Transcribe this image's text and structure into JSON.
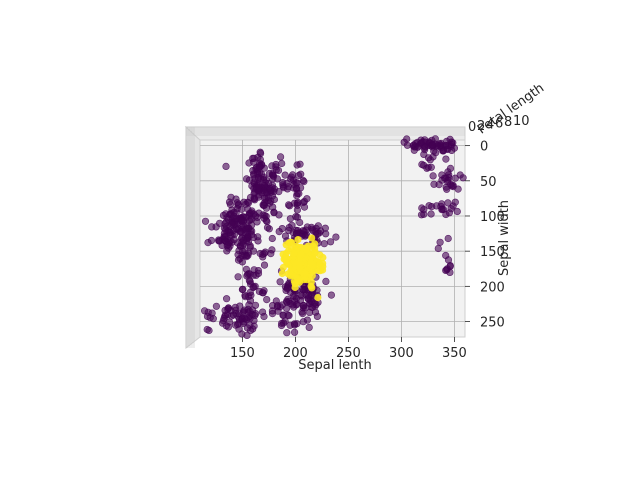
{
  "chart_data": {
    "type": "scatter",
    "projection": "3d",
    "xlabel": "Sepal lenth",
    "ylabel": "Sepal width",
    "zlabel": "Petal length",
    "xlim": [
      110,
      360
    ],
    "ylim": [
      -8,
      272
    ],
    "xticks": [
      150,
      200,
      250,
      300,
      350
    ],
    "yticks": [
      0,
      50,
      100,
      150,
      200,
      250
    ],
    "grid": true,
    "colors": {
      "cluster_0": "#440154",
      "cluster_1": "#fde725",
      "pane": "#f2f2f2",
      "grid": "#b0b0b0"
    },
    "clusters": [
      {
        "label": 0,
        "color": "#440154",
        "alpha": 0.6,
        "blobs": [
          {
            "x": 165,
            "y": 40,
            "sx": 6,
            "sy": 18,
            "n": 40
          },
          {
            "x": 185,
            "y": 40,
            "sx": 5,
            "sy": 15,
            "n": 20
          },
          {
            "x": 200,
            "y": 70,
            "sx": 6,
            "sy": 25,
            "n": 40
          },
          {
            "x": 150,
            "y": 105,
            "sx": 10,
            "sy": 18,
            "n": 80
          },
          {
            "x": 170,
            "y": 70,
            "sx": 6,
            "sy": 20,
            "n": 60
          },
          {
            "x": 135,
            "y": 120,
            "sx": 8,
            "sy": 15,
            "n": 30
          },
          {
            "x": 148,
            "y": 135,
            "sx": 8,
            "sy": 15,
            "n": 40
          },
          {
            "x": 210,
            "y": 125,
            "sx": 12,
            "sy": 6,
            "n": 40
          },
          {
            "x": 195,
            "y": 205,
            "sx": 5,
            "sy": 15,
            "n": 30
          },
          {
            "x": 212,
            "y": 210,
            "sx": 6,
            "sy": 15,
            "n": 60
          },
          {
            "x": 160,
            "y": 195,
            "sx": 6,
            "sy": 12,
            "n": 30
          },
          {
            "x": 155,
            "y": 240,
            "sx": 8,
            "sy": 15,
            "n": 40
          },
          {
            "x": 135,
            "y": 245,
            "sx": 10,
            "sy": 10,
            "n": 30
          },
          {
            "x": 195,
            "y": 245,
            "sx": 6,
            "sy": 10,
            "n": 20
          },
          {
            "x": 330,
            "y": 0,
            "sx": 12,
            "sy": 5,
            "n": 60
          },
          {
            "x": 345,
            "y": 50,
            "sx": 6,
            "sy": 8,
            "n": 25
          },
          {
            "x": 340,
            "y": 90,
            "sx": 10,
            "sy": 5,
            "n": 20
          },
          {
            "x": 320,
            "y": 15,
            "sx": 4,
            "sy": 10,
            "n": 10
          },
          {
            "x": 235,
            "y": 210,
            "sx": 2,
            "sy": 2,
            "n": 1
          },
          {
            "x": 150,
            "y": 155,
            "sx": 4,
            "sy": 4,
            "n": 6
          },
          {
            "x": 170,
            "y": 150,
            "sx": 6,
            "sy": 6,
            "n": 8
          },
          {
            "x": 220,
            "y": 135,
            "sx": 4,
            "sy": 6,
            "n": 10
          },
          {
            "x": 180,
            "y": 230,
            "sx": 4,
            "sy": 6,
            "n": 8
          },
          {
            "x": 345,
            "y": 175,
            "sx": 3,
            "sy": 5,
            "n": 6
          },
          {
            "x": 135,
            "y": 140,
            "sx": 3,
            "sy": 6,
            "n": 6
          },
          {
            "x": 340,
            "y": 145,
            "sx": 6,
            "sy": 8,
            "n": 5
          }
        ]
      },
      {
        "label": 1,
        "color": "#fde725",
        "alpha": 0.9,
        "blobs": [
          {
            "x": 208,
            "y": 168,
            "sx": 8,
            "sy": 14,
            "n": 180
          },
          {
            "x": 200,
            "y": 160,
            "sx": 5,
            "sy": 10,
            "n": 40
          }
        ]
      }
    ]
  }
}
